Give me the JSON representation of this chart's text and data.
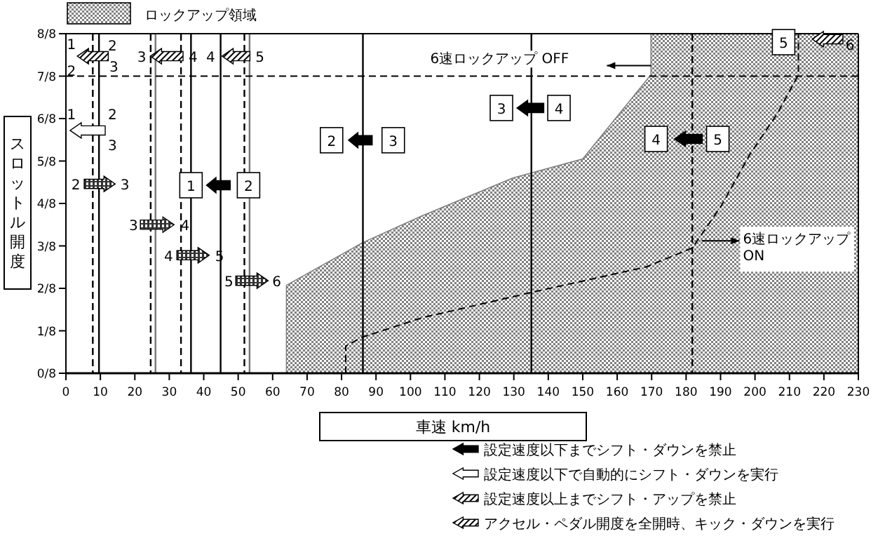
{
  "chart_data": {
    "type": "area",
    "xlabel": "車速 km/h",
    "ylabel": "スロットル開度",
    "legend": "top left",
    "grid": false,
    "marker": "none",
    "xlim": [
      0,
      230
    ],
    "xticks": [
      0,
      10,
      20,
      30,
      40,
      50,
      60,
      70,
      80,
      90,
      100,
      110,
      120,
      130,
      140,
      150,
      160,
      170,
      180,
      190,
      200,
      210,
      220,
      230
    ],
    "ylim": [
      0,
      1
    ],
    "yticks": [
      {
        "value": 0,
        "label": "0/8"
      },
      {
        "value": 0.125,
        "label": "1/8"
      },
      {
        "value": 0.25,
        "label": "2/8"
      },
      {
        "value": 0.375,
        "label": "3/8"
      },
      {
        "value": 0.5,
        "label": "4/8"
      },
      {
        "value": 0.625,
        "label": "5/8"
      },
      {
        "value": 0.75,
        "label": "6/8"
      },
      {
        "value": 0.875,
        "label": "7/8"
      },
      {
        "value": 1,
        "label": "8/8"
      }
    ],
    "series": [
      {
        "name": "ロックアップ領域",
        "color": "#808080",
        "x": [
          64,
          64,
          86,
          103.2,
          129.7,
          150,
          169.8,
          169.8,
          230
        ],
        "values": [
          0,
          0.259,
          0.384,
          0.463,
          0.575,
          0.631,
          0.879,
          1,
          1
        ]
      },
      {
        "type": "line",
        "line_style": "dashed",
        "color": "#000000",
        "x": [
          81.2,
          81.2,
          86,
          103.2,
          135.1,
          168.4,
          181.8,
          190.2,
          198.3,
          206.5,
          212.6,
          212.6
        ],
        "values": [
          0,
          0.08,
          0.106,
          0.163,
          0.238,
          0.313,
          0.369,
          0.493,
          0.641,
          0.765,
          0.879,
          1
        ]
      }
    ],
    "ref_lines": [
      {
        "axis": "x",
        "value": 7.8,
        "line_style": "dashed",
        "color": "#000000"
      },
      {
        "axis": "x",
        "value": 9.6,
        "line_style": "solid",
        "color": "#000000"
      },
      {
        "axis": "x",
        "value": 24.6,
        "line_style": "dashed",
        "color": "#000000"
      },
      {
        "axis": "x",
        "value": 26,
        "line_style": "solid",
        "color": "#777777"
      },
      {
        "axis": "x",
        "value": 33.4,
        "line_style": "dashed",
        "color": "#000000"
      },
      {
        "axis": "x",
        "value": 36.3,
        "line_style": "solid",
        "color": "#000000"
      },
      {
        "axis": "x",
        "value": 44.9,
        "line_style": "solid",
        "color": "#000000"
      },
      {
        "axis": "x",
        "value": 51.8,
        "line_style": "dashed",
        "color": "#000000"
      },
      {
        "axis": "x",
        "value": 53.3,
        "line_style": "solid",
        "color": "#777777"
      },
      {
        "axis": "x",
        "value": 86.2,
        "line_style": "solid",
        "color": "#000000"
      },
      {
        "axis": "x",
        "value": 135.1,
        "line_style": "solid",
        "color": "#000000"
      },
      {
        "axis": "x",
        "value": 181.8,
        "line_style": "dashed",
        "color": "#000000"
      },
      {
        "axis": "y",
        "value": 0.875,
        "line_style": "dashed",
        "color": "#000000"
      }
    ],
    "annotations": [
      "1",
      "2",
      "2",
      "3",
      "3",
      "4",
      "4",
      "5",
      "1",
      "2",
      "3",
      "2",
      "3",
      "3",
      "4",
      "4",
      "5",
      "5",
      "6",
      "1",
      "2",
      "2",
      "3",
      "3",
      "4",
      "4",
      "5",
      "5",
      "6",
      "6速ロックアップ OFF",
      "6速ロックアップ\nON",
      "設定速度以下までシフト・ダウンを禁止",
      "設定速度以下で自動的にシフト・ダウンを実行",
      "設定速度以上までシフト・アップを禁止",
      "アクセル・ペダル開度を全開時、キック・ダウンを実行"
    ]
  }
}
